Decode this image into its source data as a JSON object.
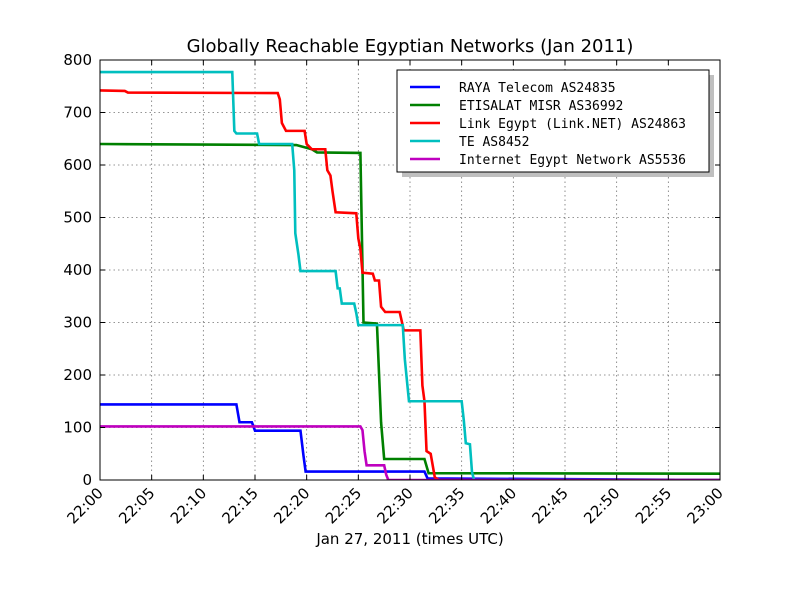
{
  "chart_data": {
    "type": "line",
    "title": "Globally Reachable Egyptian Networks (Jan 2011)",
    "xlabel": "Jan 27, 2011 (times UTC)",
    "ylabel": "",
    "x_range": [
      "22:00",
      "23:00"
    ],
    "ylim": [
      0,
      800
    ],
    "x_ticks": [
      "22:00",
      "22:05",
      "22:10",
      "22:15",
      "22:20",
      "22:25",
      "22:30",
      "22:35",
      "22:40",
      "22:45",
      "22:50",
      "22:55",
      "23:00"
    ],
    "y_ticks": [
      "0",
      "100",
      "200",
      "300",
      "400",
      "500",
      "600",
      "700",
      "800"
    ],
    "grid": true,
    "legend_position": "top-right",
    "series": [
      {
        "name": "RAYA Telecom AS24835",
        "color": "#0000ff",
        "points": [
          [
            "22:00",
            144
          ],
          [
            "22:13:12",
            144
          ],
          [
            "22:13:30",
            110
          ],
          [
            "22:14:42",
            110
          ],
          [
            "22:15:00",
            94
          ],
          [
            "22:19:24",
            94
          ],
          [
            "22:19:42",
            45
          ],
          [
            "22:19:54",
            16
          ],
          [
            "22:31:24",
            16
          ],
          [
            "22:31:42",
            3
          ],
          [
            "23:00",
            0
          ]
        ]
      },
      {
        "name": "ETISALAT MISR AS36992",
        "color": "#008000",
        "points": [
          [
            "22:00",
            640
          ],
          [
            "22:19:00",
            638
          ],
          [
            "22:20:30",
            630
          ],
          [
            "22:21:00",
            624
          ],
          [
            "22:25:12",
            623
          ],
          [
            "22:25:30",
            300
          ],
          [
            "22:26:48",
            298
          ],
          [
            "22:27:12",
            110
          ],
          [
            "22:27:30",
            40
          ],
          [
            "22:31:24",
            40
          ],
          [
            "22:31:48",
            13
          ],
          [
            "23:00",
            12
          ]
        ]
      },
      {
        "name": "Link Egypt (Link.NET) AS24863",
        "color": "#ff0000",
        "points": [
          [
            "22:00",
            742
          ],
          [
            "22:02:24",
            741
          ],
          [
            "22:02:42",
            738
          ],
          [
            "22:17:12",
            737
          ],
          [
            "22:17:24",
            725
          ],
          [
            "22:17:36",
            680
          ],
          [
            "22:18:00",
            665
          ],
          [
            "22:19:48",
            665
          ],
          [
            "22:20:00",
            640
          ],
          [
            "22:20:30",
            630
          ],
          [
            "22:21:48",
            630
          ],
          [
            "22:22:00",
            590
          ],
          [
            "22:22:18",
            580
          ],
          [
            "22:22:30",
            550
          ],
          [
            "22:22:48",
            510
          ],
          [
            "22:24:48",
            508
          ],
          [
            "22:25:00",
            460
          ],
          [
            "22:25:12",
            440
          ],
          [
            "22:25:24",
            395
          ],
          [
            "22:26:24",
            393
          ],
          [
            "22:26:36",
            380
          ],
          [
            "22:27:00",
            380
          ],
          [
            "22:27:12",
            330
          ],
          [
            "22:27:36",
            320
          ],
          [
            "22:29:00",
            320
          ],
          [
            "22:29:24",
            285
          ],
          [
            "22:31:00",
            285
          ],
          [
            "22:31:12",
            180
          ],
          [
            "22:31:24",
            150
          ],
          [
            "22:31:36",
            55
          ],
          [
            "22:32:00",
            50
          ],
          [
            "22:32:24",
            5
          ],
          [
            "22:32:48",
            0
          ],
          [
            "23:00",
            0
          ]
        ]
      },
      {
        "name": "TE AS8452",
        "color": "#00bfbf",
        "points": [
          [
            "22:00",
            777
          ],
          [
            "22:12:48",
            777
          ],
          [
            "22:13:00",
            665
          ],
          [
            "22:13:12",
            660
          ],
          [
            "22:15:12",
            660
          ],
          [
            "22:15:24",
            640
          ],
          [
            "22:18:36",
            640
          ],
          [
            "22:18:48",
            590
          ],
          [
            "22:18:54",
            470
          ],
          [
            "22:19:12",
            430
          ],
          [
            "22:19:24",
            398
          ],
          [
            "22:22:48",
            398
          ],
          [
            "22:23:00",
            365
          ],
          [
            "22:23:12",
            365
          ],
          [
            "22:23:24",
            336
          ],
          [
            "22:24:36",
            336
          ],
          [
            "22:24:48",
            318
          ],
          [
            "22:25:00",
            295
          ],
          [
            "22:29:18",
            295
          ],
          [
            "22:29:30",
            230
          ],
          [
            "22:29:42",
            190
          ],
          [
            "22:29:54",
            150
          ],
          [
            "22:35:00",
            150
          ],
          [
            "22:35:12",
            115
          ],
          [
            "22:35:24",
            70
          ],
          [
            "22:35:48",
            68
          ],
          [
            "22:36:00",
            15
          ],
          [
            "22:36:12",
            0
          ],
          [
            "23:00",
            0
          ]
        ]
      },
      {
        "name": "Internet Egypt Network AS5536",
        "color": "#bf00bf",
        "points": [
          [
            "22:00",
            102
          ],
          [
            "22:25:12",
            102
          ],
          [
            "22:25:24",
            95
          ],
          [
            "22:25:36",
            55
          ],
          [
            "22:25:48",
            28
          ],
          [
            "22:27:30",
            28
          ],
          [
            "22:27:42",
            10
          ],
          [
            "22:27:54",
            0
          ],
          [
            "23:00",
            0
          ]
        ]
      }
    ]
  }
}
